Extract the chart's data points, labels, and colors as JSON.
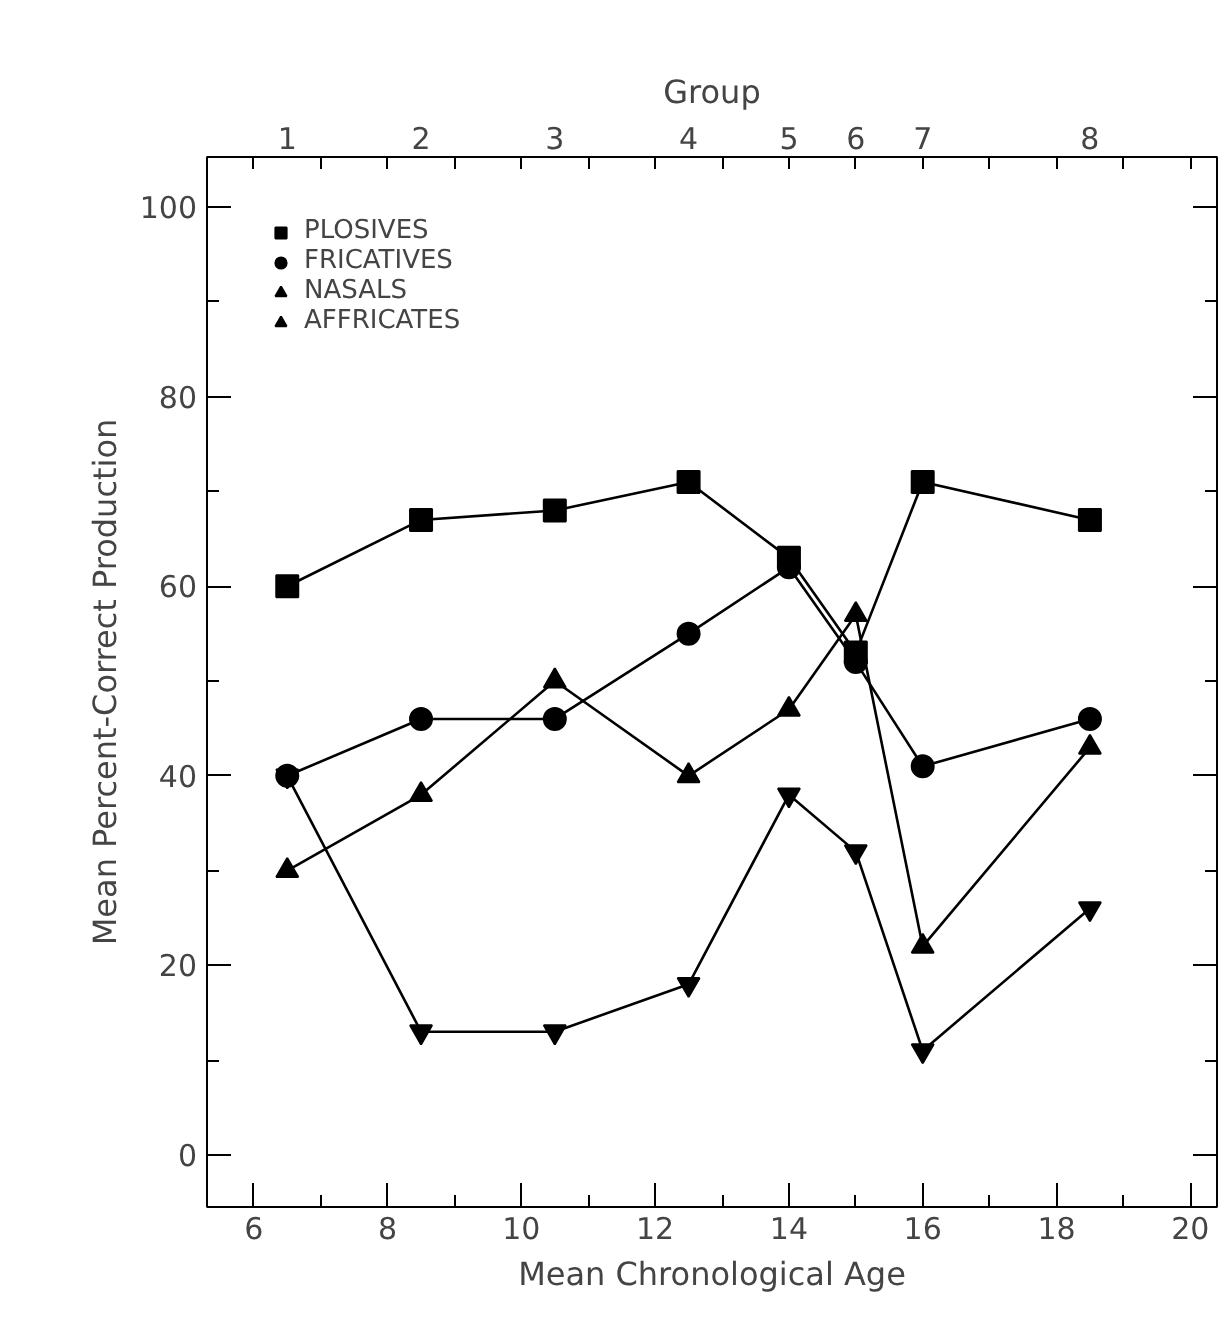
{
  "chart_data": {
    "type": "line",
    "xlabel": "Mean Chronological Age",
    "ylabel": "Mean Percent-Correct Production",
    "x2label": "Group",
    "x": [
      6.5,
      8.5,
      10.5,
      12.5,
      14,
      15,
      16,
      18.5
    ],
    "series": [
      {
        "name": "PLOSIVES",
        "color": "#000000",
        "marker": "square",
        "values": [
          60,
          67,
          68,
          71,
          63,
          53,
          71,
          67
        ]
      },
      {
        "name": "FRICATIVES",
        "color": "#000000",
        "marker": "circle",
        "values": [
          40,
          46,
          46,
          55,
          62,
          52,
          41,
          46
        ]
      },
      {
        "name": "NASALS",
        "color": "#000000",
        "marker": "triangle",
        "values": [
          30,
          38,
          50,
          40,
          47,
          57,
          22,
          43
        ]
      },
      {
        "name": "AFFRICATES",
        "color": "#000000",
        "marker": "triangle",
        "values": [
          40,
          13,
          13,
          18,
          38,
          32,
          11,
          26
        ]
      }
    ],
    "xlim": [
      5.3,
      20.4
    ],
    "ylim": [
      -5.5,
      105.3
    ],
    "xticks": [
      6,
      8,
      10,
      12,
      14,
      16,
      18,
      20
    ],
    "yticks": [
      0,
      20,
      40,
      60,
      80,
      100
    ],
    "annotations": [
      "1",
      "2",
      "3",
      "4",
      "5",
      "6",
      "7",
      "8"
    ],
    "legend": "top left",
    "grid": false,
    "line_style": "solid"
  }
}
